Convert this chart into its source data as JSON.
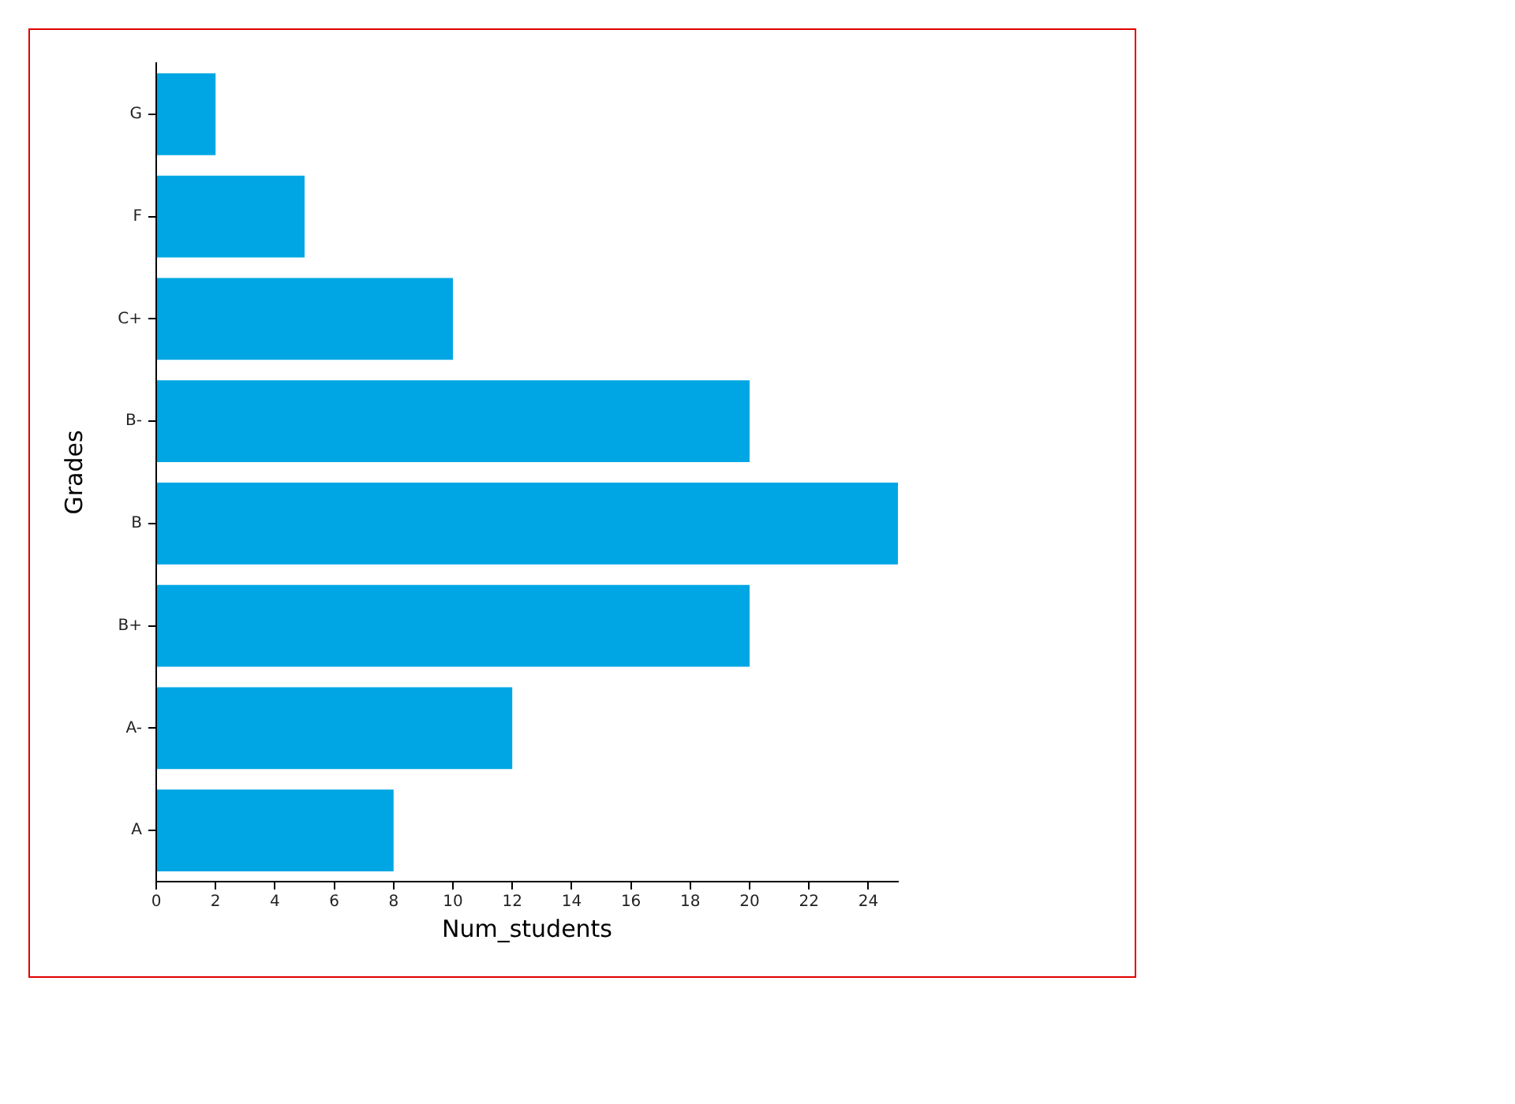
{
  "chart_data": {
    "type": "bar",
    "orientation": "horizontal",
    "xlabel": "Num_students",
    "ylabel": "Grades",
    "categories": [
      "G",
      "F",
      "C+",
      "B-",
      "B",
      "B+",
      "A-",
      "A"
    ],
    "values": [
      2,
      5,
      10,
      20,
      25,
      20,
      12,
      8
    ],
    "color": "#00a6e4",
    "xlim": [
      0,
      25
    ],
    "xticks": [
      0,
      2,
      4,
      6,
      8,
      10,
      12,
      14,
      16,
      18,
      20,
      22,
      24
    ],
    "grid": false,
    "legend": false
  }
}
